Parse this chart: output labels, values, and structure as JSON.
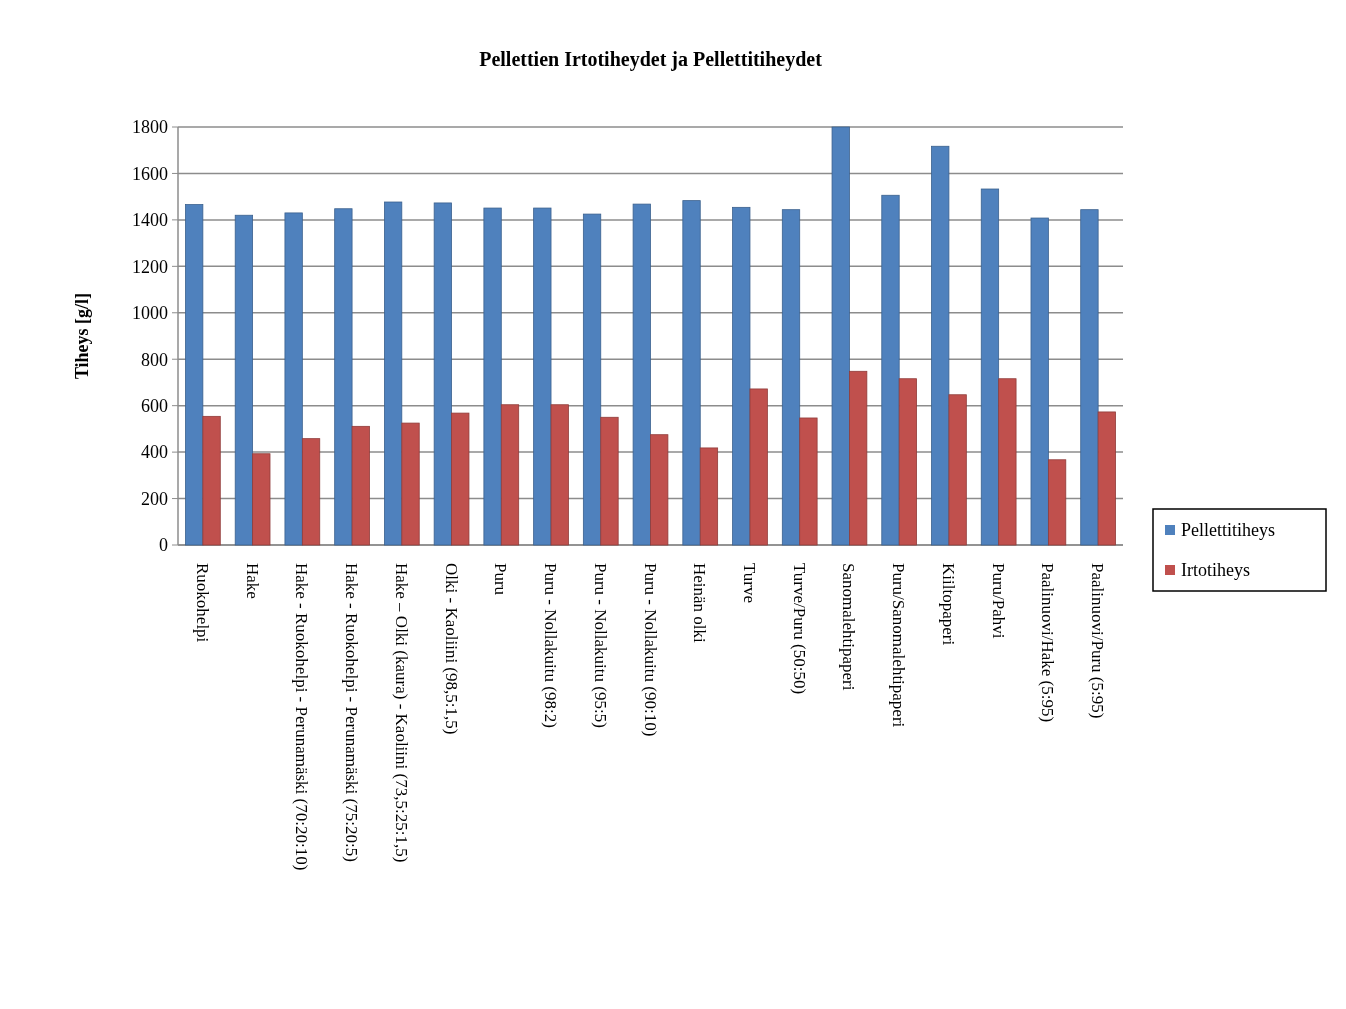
{
  "chart_data": {
    "type": "bar",
    "title": "Pellettien Irtotiheydet ja Pellettitiheydet",
    "ylabel": "Tiheys [g/l]",
    "categories": [
      "Ruokohelpi",
      "Hake",
      "Hake - Ruokohelpi - Perunamäski (70:20:10)",
      "Hake - Ruokohelpi - Perunamäski (75:20:5)",
      "Hake – Olki (kaura) - Kaoliini (73,5:25:1,5)",
      "Olki - Kaoliini (98,5:1,5)",
      "Puru",
      "Puru - Nollakuitu (98:2)",
      "Puru - Nollakuitu (95:5)",
      "Puru - Nollakuitu (90:10)",
      "Heinän olki",
      "Turve",
      "Turve/Puru (50:50)",
      "Sanomalehtipaperi",
      "Puru/Sanomalehtipaperi",
      "Kiiltopaperi",
      "Puru/Pahvi",
      "Paalinuovi/Hake (5:95)",
      "Paalinuovi/Puru (5:95)"
    ],
    "series": [
      {
        "name": "Pellettitiheys",
        "color": "#4f81bd",
        "values": [
          1466,
          1420,
          1430,
          1448,
          1477,
          1473,
          1451,
          1451,
          1425,
          1468,
          1483,
          1454,
          1444,
          1800,
          1506,
          1717,
          1533,
          1408,
          1444
        ]
      },
      {
        "name": "Irtotiheys",
        "color": "#c0504d",
        "values": [
          554,
          393,
          458,
          511,
          525,
          568,
          604,
          604,
          550,
          475,
          418,
          672,
          547,
          748,
          716,
          647,
          716,
          367,
          573
        ]
      }
    ],
    "ylim": [
      0,
      1800
    ],
    "yticks": [
      0,
      200,
      400,
      600,
      800,
      1000,
      1200,
      1400,
      1600,
      1800
    ],
    "grid": "y",
    "legend": "right"
  }
}
